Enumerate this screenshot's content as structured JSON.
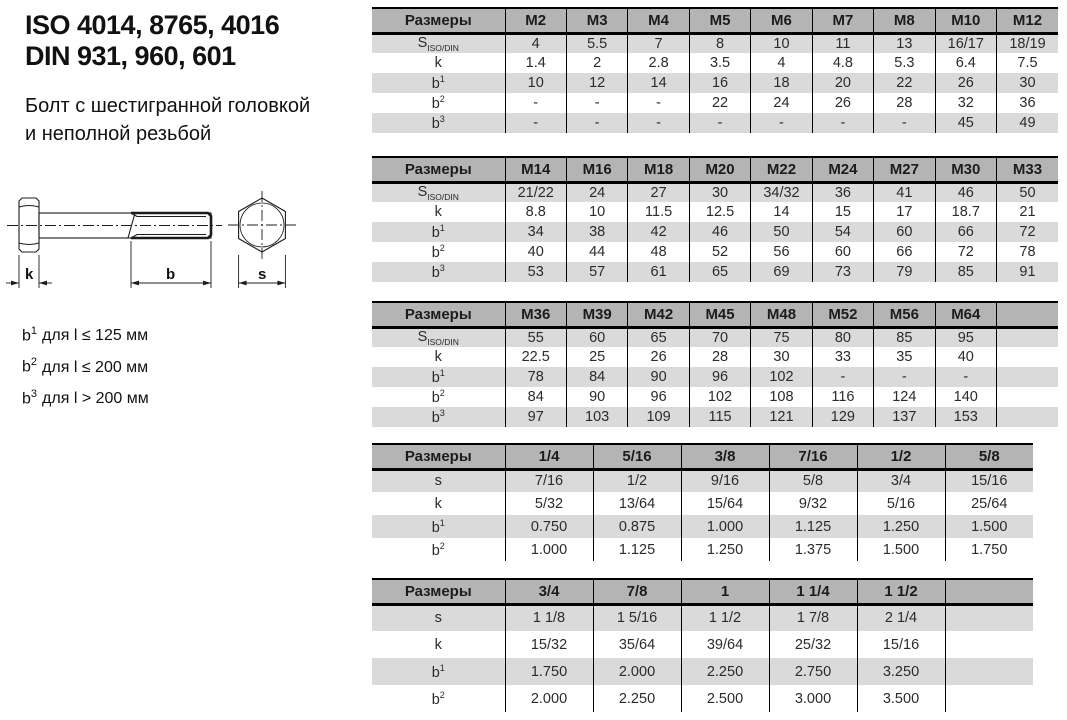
{
  "title": {
    "line1": "ISO 4014, 8765, 4016",
    "line2": "DIN 931, 960, 601"
  },
  "subtitle": {
    "line1": "Болт с шестигранной головкой",
    "line2": "и неполной резьбой"
  },
  "drawing": {
    "labels": {
      "k": "k",
      "b": "b",
      "s": "s"
    }
  },
  "notes": [
    {
      "base": "b",
      "sup": "1",
      "text": "для l ≤ 125 мм"
    },
    {
      "base": "b",
      "sup": "2",
      "text": "для l ≤ 200 мм"
    },
    {
      "base": "b",
      "sup": "3",
      "text": "для l > 200 мм"
    }
  ],
  "colors": {
    "header_bg": "#b4b4b4",
    "row_alt_bg": "#dadada",
    "border": "#000000",
    "text": "#2b2b2b"
  },
  "tables": [
    {
      "header": [
        "Размеры",
        "M2",
        "M3",
        "M4",
        "M5",
        "M6",
        "M7",
        "M8",
        "M10",
        "M12"
      ],
      "rows": [
        {
          "label": "S",
          "sub": "ISO/DIN",
          "cells": [
            "4",
            "5.5",
            "7",
            "8",
            "10",
            "11",
            "13",
            "16/17",
            "18/19"
          ]
        },
        {
          "label": "k",
          "cells": [
            "1.4",
            "2",
            "2.8",
            "3.5",
            "4",
            "4.8",
            "5.3",
            "6.4",
            "7.5"
          ]
        },
        {
          "label": "b",
          "sup": "1",
          "cells": [
            "10",
            "12",
            "14",
            "16",
            "18",
            "20",
            "22",
            "26",
            "30"
          ]
        },
        {
          "label": "b",
          "sup": "2",
          "cells": [
            "-",
            "-",
            "-",
            "22",
            "24",
            "26",
            "28",
            "32",
            "36"
          ]
        },
        {
          "label": "b",
          "sup": "3",
          "cells": [
            "-",
            "-",
            "-",
            "-",
            "-",
            "-",
            "-",
            "45",
            "49"
          ]
        }
      ]
    },
    {
      "header": [
        "Размеры",
        "M14",
        "M16",
        "M18",
        "M20",
        "M22",
        "M24",
        "M27",
        "M30",
        "M33"
      ],
      "rows": [
        {
          "label": "S",
          "sub": "ISO/DIN",
          "cells": [
            "21/22",
            "24",
            "27",
            "30",
            "34/32",
            "36",
            "41",
            "46",
            "50"
          ]
        },
        {
          "label": "k",
          "cells": [
            "8.8",
            "10",
            "11.5",
            "12.5",
            "14",
            "15",
            "17",
            "18.7",
            "21"
          ]
        },
        {
          "label": "b",
          "sup": "1",
          "cells": [
            "34",
            "38",
            "42",
            "46",
            "50",
            "54",
            "60",
            "66",
            "72"
          ]
        },
        {
          "label": "b",
          "sup": "2",
          "cells": [
            "40",
            "44",
            "48",
            "52",
            "56",
            "60",
            "66",
            "72",
            "78"
          ]
        },
        {
          "label": "b",
          "sup": "3",
          "cells": [
            "53",
            "57",
            "61",
            "65",
            "69",
            "73",
            "79",
            "85",
            "91"
          ]
        }
      ]
    },
    {
      "header": [
        "Размеры",
        "M36",
        "M39",
        "M42",
        "M45",
        "M48",
        "M52",
        "M56",
        "M64",
        ""
      ],
      "rows": [
        {
          "label": "S",
          "sub": "ISO/DIN",
          "cells": [
            "55",
            "60",
            "65",
            "70",
            "75",
            "80",
            "85",
            "95",
            ""
          ]
        },
        {
          "label": "k",
          "cells": [
            "22.5",
            "25",
            "26",
            "28",
            "30",
            "33",
            "35",
            "40",
            ""
          ]
        },
        {
          "label": "b",
          "sup": "1",
          "cells": [
            "78",
            "84",
            "90",
            "96",
            "102",
            "-",
            "-",
            "-",
            ""
          ]
        },
        {
          "label": "b",
          "sup": "2",
          "cells": [
            "84",
            "90",
            "96",
            "102",
            "108",
            "116",
            "124",
            "140",
            ""
          ]
        },
        {
          "label": "b",
          "sup": "3",
          "cells": [
            "97",
            "103",
            "109",
            "115",
            "121",
            "129",
            "137",
            "153",
            ""
          ]
        }
      ]
    },
    {
      "header": [
        "Размеры",
        "1/4",
        "5/16",
        "3/8",
        "7/16",
        "1/2",
        "5/8"
      ],
      "rows": [
        {
          "label": "s",
          "cells": [
            "7/16",
            "1/2",
            "9/16",
            "5/8",
            "3/4",
            "15/16"
          ]
        },
        {
          "label": "k",
          "cells": [
            "5/32",
            "13/64",
            "15/64",
            "9/32",
            "5/16",
            "25/64"
          ]
        },
        {
          "label": "b",
          "sup": "1",
          "cells": [
            "0.750",
            "0.875",
            "1.000",
            "1.125",
            "1.250",
            "1.500"
          ]
        },
        {
          "label": "b",
          "sup": "2",
          "cells": [
            "1.000",
            "1.125",
            "1.250",
            "1.375",
            "1.500",
            "1.750"
          ]
        }
      ]
    },
    {
      "header": [
        "Размеры",
        "3/4",
        "7/8",
        "1",
        "1 1/4",
        "1 1/2",
        ""
      ],
      "rows": [
        {
          "label": "s",
          "cells": [
            "1 1/8",
            "1 5/16",
            "1 1/2",
            "1 7/8",
            "2 1/4",
            ""
          ]
        },
        {
          "label": "k",
          "cells": [
            "15/32",
            "35/64",
            "39/64",
            "25/32",
            "15/16",
            ""
          ]
        },
        {
          "label": "b",
          "sup": "1",
          "cells": [
            "1.750",
            "2.000",
            "2.250",
            "2.750",
            "3.250",
            ""
          ]
        },
        {
          "label": "b",
          "sup": "2",
          "cells": [
            "2.000",
            "2.250",
            "2.500",
            "3.000",
            "3.500",
            ""
          ]
        }
      ]
    }
  ]
}
